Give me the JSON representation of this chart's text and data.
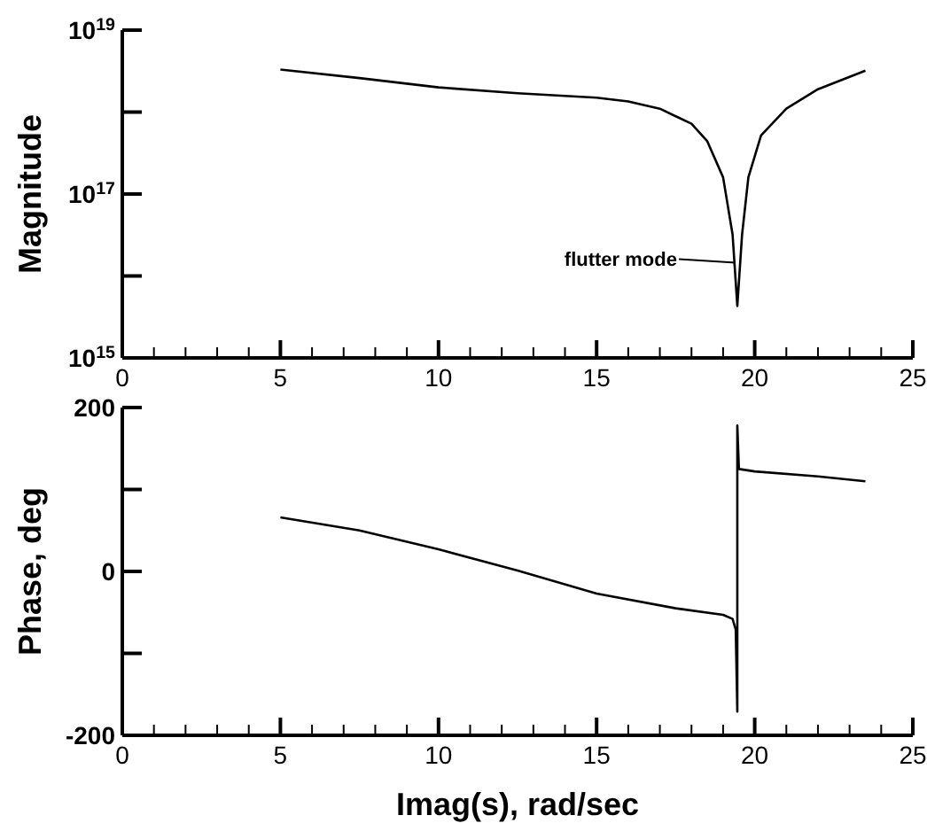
{
  "chart_data": [
    {
      "type": "line",
      "ylabel": "Magnitude",
      "log": "y",
      "xlim": [
        0,
        25
      ],
      "xticks": [
        0,
        {
          "value": 1,
          "label": null
        },
        {
          "value": 2,
          "label": null
        },
        {
          "value": 3,
          "label": null
        },
        {
          "value": 4,
          "label": null
        },
        5,
        {
          "value": 6,
          "label": null
        },
        {
          "value": 7,
          "label": null
        },
        {
          "value": 8,
          "label": null
        },
        {
          "value": 9,
          "label": null
        },
        10,
        {
          "value": 11,
          "label": null
        },
        {
          "value": 12,
          "label": null
        },
        {
          "value": 13,
          "label": null
        },
        {
          "value": 14,
          "label": null
        },
        15,
        {
          "value": 16,
          "label": null
        },
        {
          "value": 17,
          "label": null
        },
        {
          "value": 18,
          "label": null
        },
        {
          "value": 19,
          "label": null
        },
        20,
        {
          "value": 21,
          "label": null
        },
        {
          "value": 22,
          "label": null
        },
        {
          "value": 23,
          "label": null
        },
        {
          "value": 24,
          "label": null
        },
        25
      ],
      "ylim": [
        1000000000000000.0,
        1e+19
      ],
      "yticks": [
        {
          "value": 1000000000000000.0,
          "label": "10$^{15}$"
        },
        {
          "value": 1e+16,
          "label": null
        },
        {
          "value": 1e+17,
          "label": "10$^{17}$"
        },
        {
          "value": 1e+18,
          "label": null
        },
        {
          "value": 1e+19,
          "label": "10$^{19}$"
        }
      ],
      "x": [
        5,
        7.5,
        10,
        12.5,
        15,
        16,
        17,
        18,
        18.5,
        19,
        19.3,
        19.45,
        19.6,
        19.8,
        20.2,
        21,
        22,
        23.5
      ],
      "series": [
        {
          "color": "#000000",
          "values": [
            3.3e+18,
            2.6e+18,
            2e+18,
            1.7e+18,
            1.5e+18,
            1.35e+18,
            1.1e+18,
            7.2e+17,
            4.4e+17,
            1.6e+17,
            3.2e+16,
            4300000000000000.0,
            3.2e+16,
            1.6e+17,
            5.2e+17,
            1.1e+18,
            1.9e+18,
            3.2e+18
          ]
        }
      ],
      "annotations": [
        "flutter mode"
      ]
    },
    {
      "type": "line",
      "xlabel": "Imag(s), rad/sec",
      "ylabel": "Phase, deg",
      "xlim": [
        0,
        25
      ],
      "xticks": [
        0,
        {
          "value": 1,
          "label": null
        },
        {
          "value": 2,
          "label": null
        },
        {
          "value": 3,
          "label": null
        },
        {
          "value": 4,
          "label": null
        },
        5,
        {
          "value": 6,
          "label": null
        },
        {
          "value": 7,
          "label": null
        },
        {
          "value": 8,
          "label": null
        },
        {
          "value": 9,
          "label": null
        },
        10,
        {
          "value": 11,
          "label": null
        },
        {
          "value": 12,
          "label": null
        },
        {
          "value": 13,
          "label": null
        },
        {
          "value": 14,
          "label": null
        },
        15,
        {
          "value": 16,
          "label": null
        },
        {
          "value": 17,
          "label": null
        },
        {
          "value": 18,
          "label": null
        },
        {
          "value": 19,
          "label": null
        },
        20,
        {
          "value": 21,
          "label": null
        },
        {
          "value": 22,
          "label": null
        },
        {
          "value": 23,
          "label": null
        },
        {
          "value": 24,
          "label": null
        },
        25
      ],
      "ylim": [
        -200,
        200
      ],
      "yticks": [
        -200,
        {
          "value": -100,
          "label": null
        },
        0,
        {
          "value": 100,
          "label": null
        },
        200
      ],
      "x": [
        5,
        7.5,
        10,
        12.5,
        15,
        17.5,
        19,
        19.3,
        19.4,
        19.45,
        19.45,
        19.5,
        20,
        22,
        23.5
      ],
      "series": [
        {
          "color": "#000000",
          "values": [
            66,
            50,
            27,
            1,
            -27,
            -45,
            -53,
            -58,
            -71,
            -171,
            178,
            125,
            122,
            116,
            110
          ]
        }
      ]
    }
  ]
}
